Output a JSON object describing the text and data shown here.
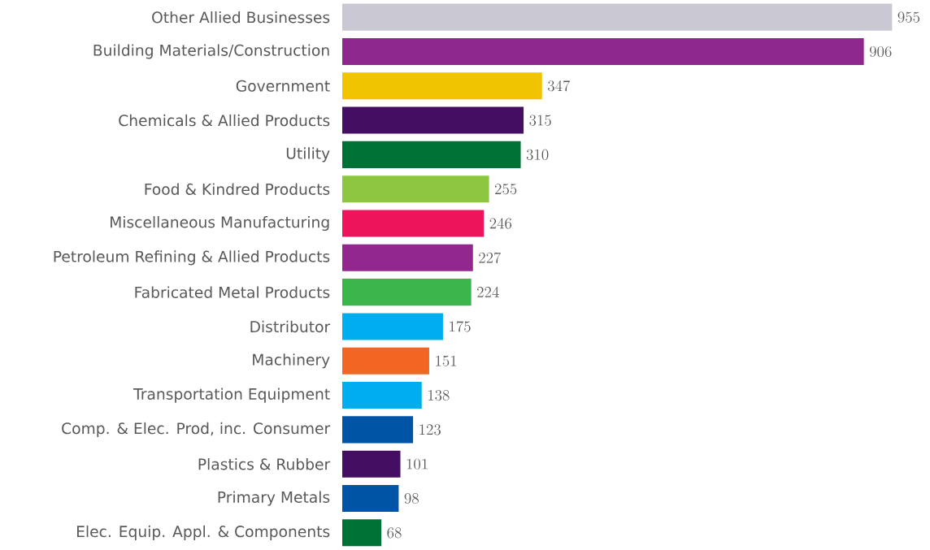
{
  "chart_data": {
    "type": "bar",
    "orientation": "horizontal",
    "data_labels": true,
    "categories": [
      "Other Allied Businesses",
      "Building Materials/Construction",
      "Government",
      "Chemicals & Allied Products",
      "Utility",
      "Food & Kindred Products",
      "Miscellaneous Manufacturing",
      "Petroleum Refining & Allied Products",
      "Fabricated Metal Products",
      "Distributor",
      "Machinery",
      "Transportation Equipment",
      "Comp. & Elec. Prod, inc. Consumer",
      "Plastics & Rubber",
      "Primary Metals",
      "Elec. Equip. Appl. & Components"
    ],
    "values": [
      955,
      906,
      347,
      315,
      310,
      255,
      246,
      227,
      224,
      175,
      151,
      138,
      123,
      101,
      98,
      68
    ],
    "colors": [
      "#c9c8d3",
      "#8e288f",
      "#f0c400",
      "#440e62",
      "#007236",
      "#8dc63f",
      "#ed145b",
      "#92278f",
      "#39b54a",
      "#00aeef",
      "#f26522",
      "#00aeef",
      "#0054a6",
      "#440e62",
      "#0054a6",
      "#007236"
    ]
  }
}
